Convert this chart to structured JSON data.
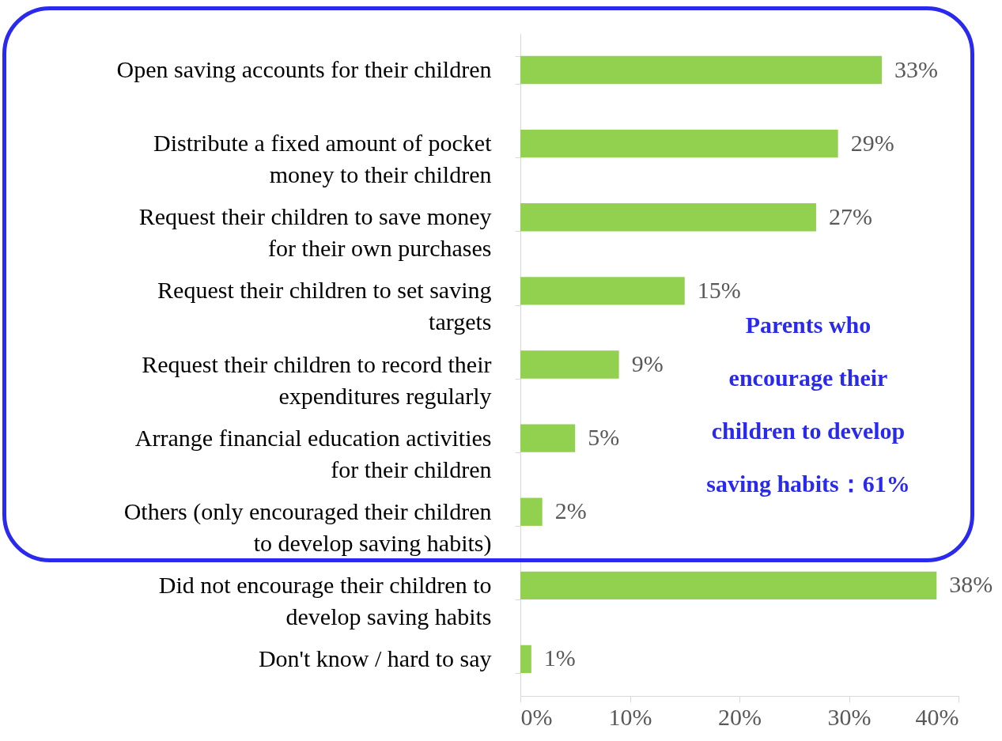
{
  "chart_data": {
    "type": "bar",
    "orientation": "horizontal",
    "categories": [
      "Open saving accounts for their children",
      "Distribute a fixed amount of pocket money to their children",
      "Request their children to save money for their own purchases",
      "Request their children to set saving targets",
      "Request their children to record their expenditures regularly",
      "Arrange financial education activities for their children",
      "Others (only encouraged their children to develop saving habits)",
      "Did not encourage their children to develop saving habits",
      "Don't know / hard to say"
    ],
    "values": [
      33,
      29,
      27,
      15,
      9,
      5,
      2,
      38,
      1
    ],
    "value_labels": [
      "33%",
      "29%",
      "27%",
      "15%",
      "9%",
      "5%",
      "2%",
      "38%",
      "1%"
    ],
    "color": "#92d050",
    "xlim": [
      0,
      40
    ],
    "xticks": [
      {
        "value": 0,
        "label": "0%"
      },
      {
        "value": 10,
        "label": "10%"
      },
      {
        "value": 20,
        "label": "20%"
      },
      {
        "value": 30,
        "label": "30%"
      },
      {
        "value": 40,
        "label": "40%"
      }
    ],
    "grid": false,
    "annotations": [
      "Parents who encourage their children to develop saving habits：61%"
    ]
  }
}
